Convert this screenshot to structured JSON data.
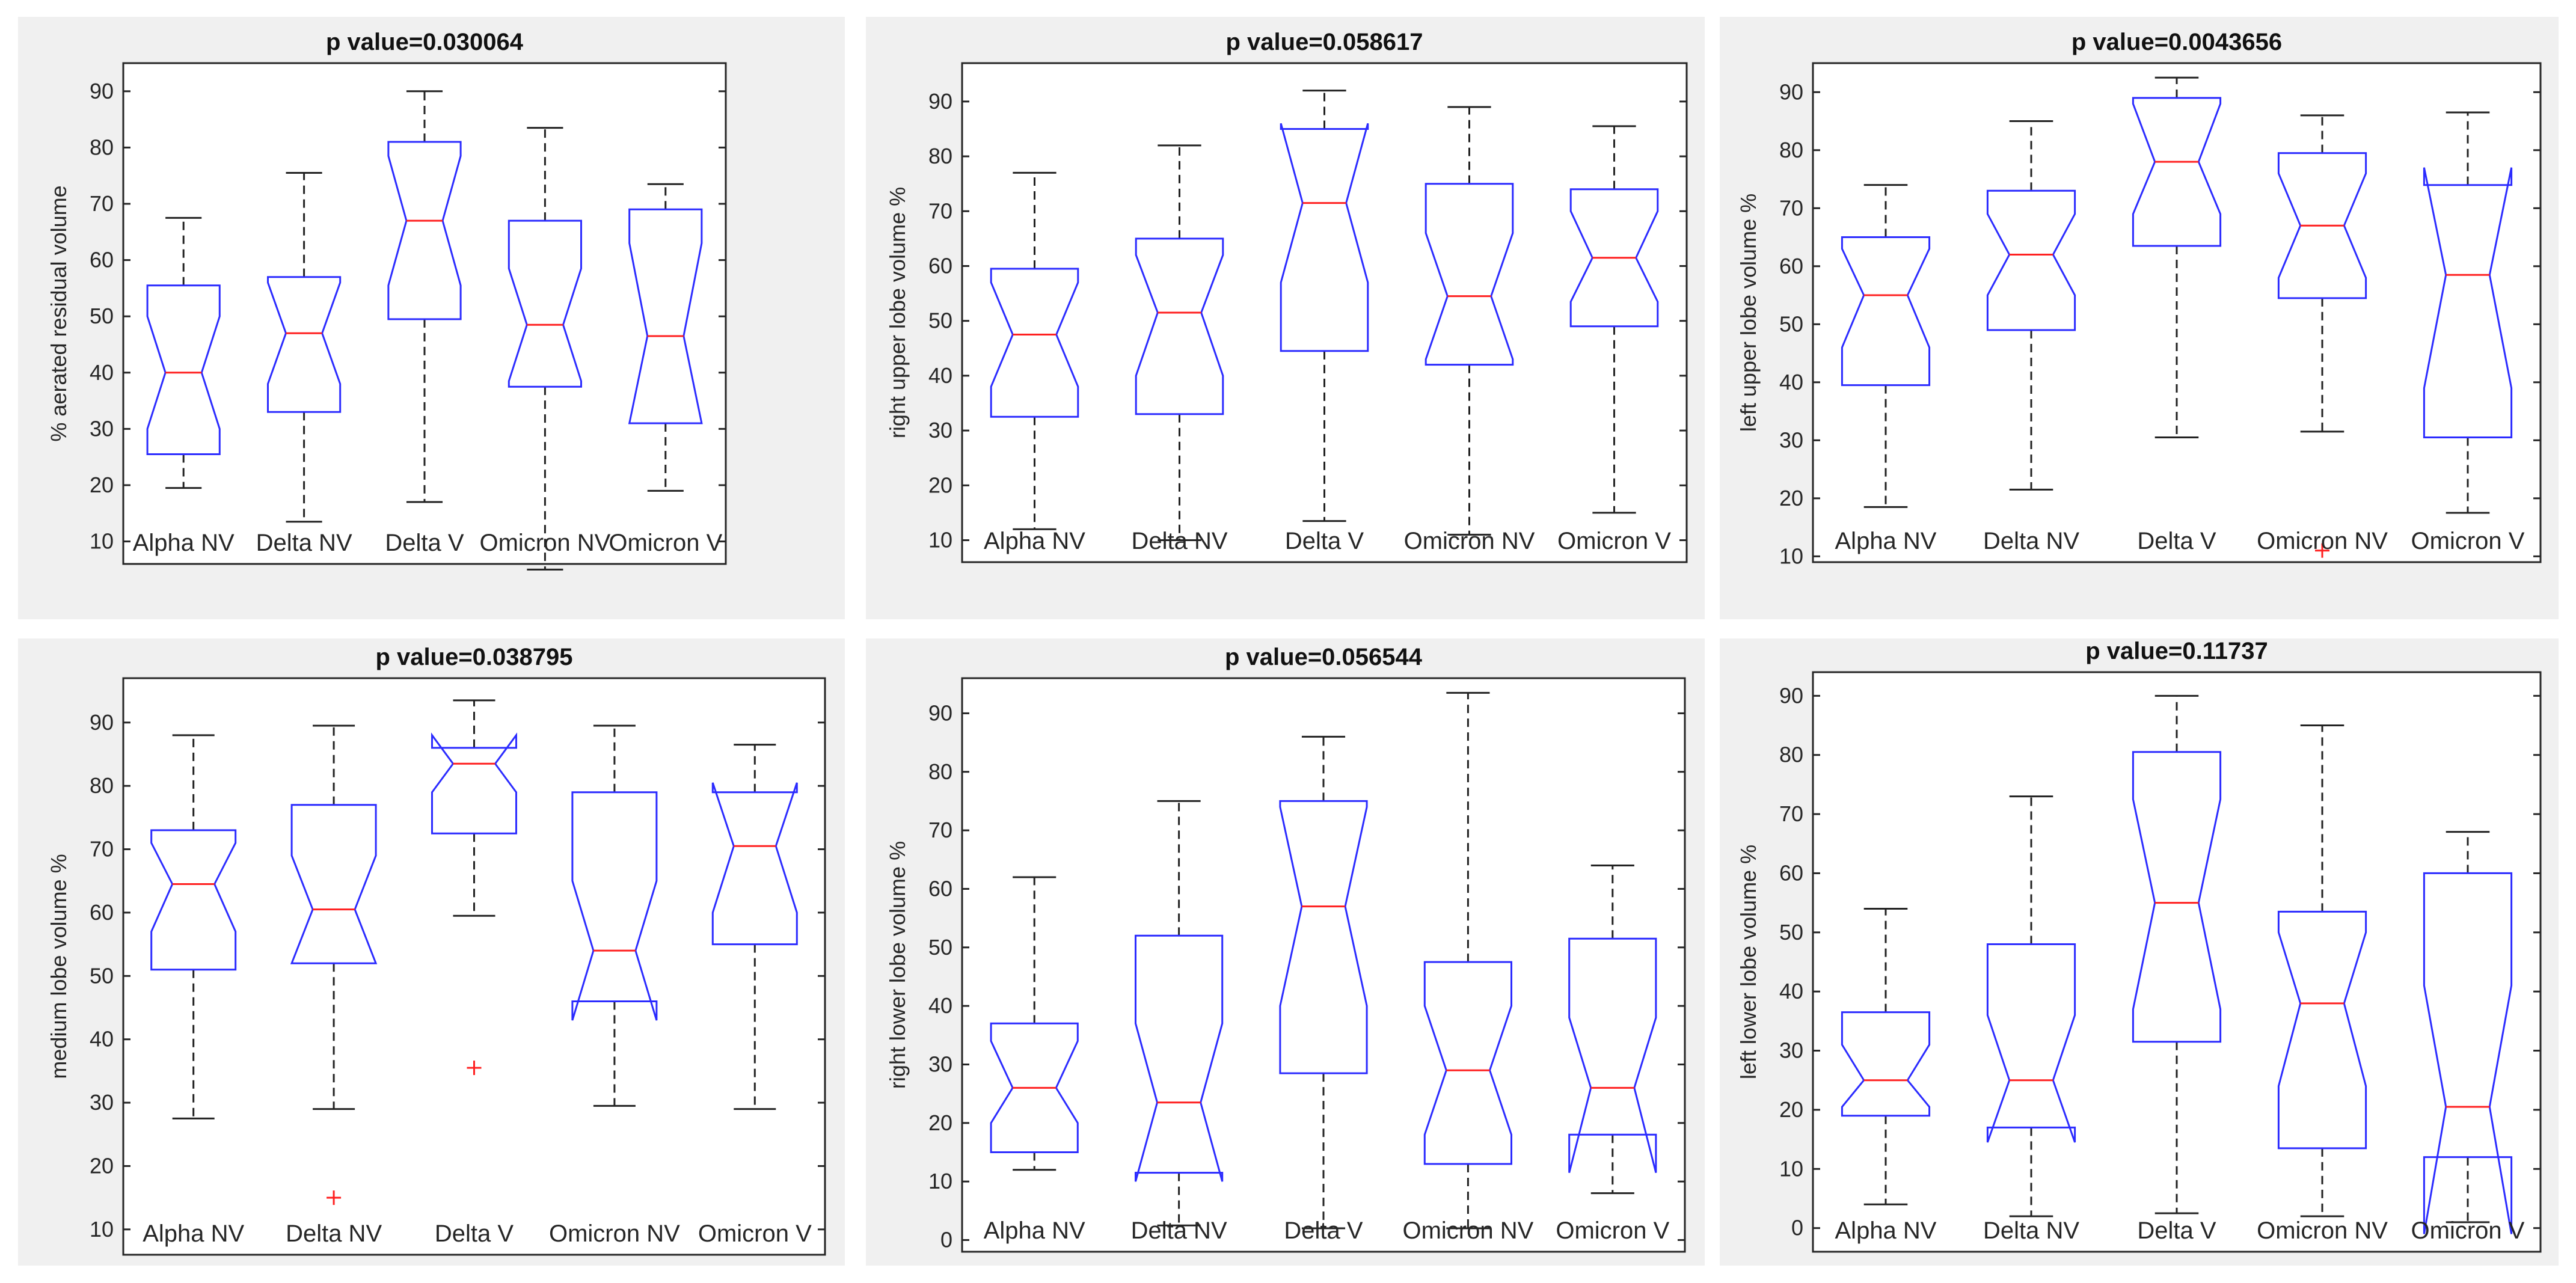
{
  "figure_layout": "2 rows x 3 columns of notched box plots",
  "chart_data": [
    {
      "type": "boxplot",
      "title": "p value=0.030064",
      "xlabel": "",
      "ylabel": "% aerated residual volume",
      "ylim": [
        6,
        95
      ],
      "yticks": [
        10,
        20,
        30,
        40,
        50,
        60,
        70,
        80,
        90
      ],
      "categories": [
        "Alpha NV",
        "Delta NV",
        "Delta V",
        "Omicron NV",
        "Omicron V"
      ],
      "boxes": [
        {
          "q1": 25.5,
          "median": 40,
          "q3": 55.5,
          "notch_low": 30,
          "notch_high": 50,
          "whisker_low": 19.5,
          "whisker_high": 67.5,
          "outliers": []
        },
        {
          "q1": 33,
          "median": 47,
          "q3": 57,
          "notch_low": 38,
          "notch_high": 56,
          "whisker_low": 13.5,
          "whisker_high": 75.5,
          "outliers": []
        },
        {
          "q1": 49.5,
          "median": 67,
          "q3": 81,
          "notch_low": 55.5,
          "notch_high": 78.5,
          "whisker_low": 17,
          "whisker_high": 90,
          "outliers": []
        },
        {
          "q1": 37.5,
          "median": 48.5,
          "q3": 67,
          "notch_low": 38.5,
          "notch_high": 58.5,
          "whisker_low": 5,
          "whisker_high": 83.5,
          "outliers": []
        },
        {
          "q1": 31,
          "median": 46.5,
          "q3": 69,
          "notch_low": 31,
          "notch_high": 63,
          "whisker_low": 19,
          "whisker_high": 73.5,
          "outliers": []
        }
      ]
    },
    {
      "type": "boxplot",
      "title": "p value=0.058617",
      "xlabel": "",
      "ylabel": "right upper lobe volume %",
      "ylim": [
        6,
        97
      ],
      "yticks": [
        10,
        20,
        30,
        40,
        50,
        60,
        70,
        80,
        90
      ],
      "categories": [
        "Alpha NV",
        "Delta NV",
        "Delta V",
        "Omicron NV",
        "Omicron V"
      ],
      "boxes": [
        {
          "q1": 32.5,
          "median": 47.5,
          "q3": 59.5,
          "notch_low": 38,
          "notch_high": 57,
          "whisker_low": 12,
          "whisker_high": 77,
          "outliers": []
        },
        {
          "q1": 33,
          "median": 51.5,
          "q3": 65,
          "notch_low": 40,
          "notch_high": 62,
          "whisker_low": 10,
          "whisker_high": 82,
          "outliers": []
        },
        {
          "q1": 44.5,
          "median": 71.5,
          "q3": 85,
          "notch_low": 57,
          "notch_high": 86,
          "whisker_low": 13.5,
          "whisker_high": 92,
          "outliers": []
        },
        {
          "q1": 42,
          "median": 54.5,
          "q3": 75,
          "notch_low": 43,
          "notch_high": 66,
          "whisker_low": 11,
          "whisker_high": 89,
          "outliers": []
        },
        {
          "q1": 49,
          "median": 61.5,
          "q3": 74,
          "notch_low": 53.5,
          "notch_high": 70,
          "whisker_low": 15,
          "whisker_high": 85.5,
          "outliers": []
        }
      ]
    },
    {
      "type": "boxplot",
      "title": "p value=0.0043656",
      "xlabel": "",
      "ylabel": "left upper lobe volume %",
      "ylim": [
        9,
        95
      ],
      "yticks": [
        10,
        20,
        30,
        40,
        50,
        60,
        70,
        80,
        90
      ],
      "categories": [
        "Alpha NV",
        "Delta NV",
        "Delta V",
        "Omicron NV",
        "Omicron V"
      ],
      "boxes": [
        {
          "q1": 39.5,
          "median": 55,
          "q3": 65,
          "notch_low": 46,
          "notch_high": 63,
          "whisker_low": 18.5,
          "whisker_high": 74,
          "outliers": []
        },
        {
          "q1": 49,
          "median": 62,
          "q3": 73,
          "notch_low": 55,
          "notch_high": 69,
          "whisker_low": 21.5,
          "whisker_high": 85,
          "outliers": []
        },
        {
          "q1": 63.5,
          "median": 78,
          "q3": 89,
          "notch_low": 69,
          "notch_high": 88,
          "whisker_low": 30.5,
          "whisker_high": 92.5,
          "outliers": []
        },
        {
          "q1": 54.5,
          "median": 67,
          "q3": 79.5,
          "notch_low": 58,
          "notch_high": 76,
          "whisker_low": 31.5,
          "whisker_high": 86,
          "outliers": [
            11
          ]
        },
        {
          "q1": 30.5,
          "median": 58.5,
          "q3": 74,
          "notch_low": 39,
          "notch_high": 77,
          "whisker_low": 17.5,
          "whisker_high": 86.5,
          "outliers": []
        }
      ]
    },
    {
      "type": "boxplot",
      "title": "p value=0.038795",
      "xlabel": "",
      "ylabel": "medium lobe volume %",
      "ylim": [
        6,
        97
      ],
      "yticks": [
        10,
        20,
        30,
        40,
        50,
        60,
        70,
        80,
        90
      ],
      "categories": [
        "Alpha NV",
        "Delta NV",
        "Delta V",
        "Omicron NV",
        "Omicron V"
      ],
      "boxes": [
        {
          "q1": 51,
          "median": 64.5,
          "q3": 73,
          "notch_low": 57,
          "notch_high": 71,
          "whisker_low": 27.5,
          "whisker_high": 88,
          "outliers": []
        },
        {
          "q1": 52,
          "median": 60.5,
          "q3": 77,
          "notch_low": 52,
          "notch_high": 69,
          "whisker_low": 29,
          "whisker_high": 89.5,
          "outliers": [
            15
          ]
        },
        {
          "q1": 72.5,
          "median": 83.5,
          "q3": 86,
          "notch_low": 79,
          "notch_high": 88,
          "whisker_low": 59.5,
          "whisker_high": 93.5,
          "outliers": [
            35.5
          ]
        },
        {
          "q1": 46,
          "median": 54,
          "q3": 79,
          "notch_low": 43,
          "notch_high": 65,
          "whisker_low": 29.5,
          "whisker_high": 89.5,
          "outliers": []
        },
        {
          "q1": 55,
          "median": 70.5,
          "q3": 79,
          "notch_low": 60,
          "notch_high": 80.5,
          "whisker_low": 29,
          "whisker_high": 86.5,
          "outliers": []
        }
      ]
    },
    {
      "type": "boxplot",
      "title": "p value=0.056544",
      "xlabel": "",
      "ylabel": "right lower lobe volume %",
      "ylim": [
        -2,
        96
      ],
      "yticks": [
        0,
        10,
        20,
        30,
        40,
        50,
        60,
        70,
        80,
        90
      ],
      "categories": [
        "Alpha NV",
        "Delta NV",
        "Delta V",
        "Omicron NV",
        "Omicron V"
      ],
      "boxes": [
        {
          "q1": 15,
          "median": 26,
          "q3": 37,
          "notch_low": 20,
          "notch_high": 34,
          "whisker_low": 12,
          "whisker_high": 62,
          "outliers": []
        },
        {
          "q1": 11.5,
          "median": 23.5,
          "q3": 52,
          "notch_low": 10,
          "notch_high": 37,
          "whisker_low": 2.5,
          "whisker_high": 75,
          "outliers": []
        },
        {
          "q1": 28.5,
          "median": 57,
          "q3": 75,
          "notch_low": 40,
          "notch_high": 74,
          "whisker_low": 2,
          "whisker_high": 86,
          "outliers": []
        },
        {
          "q1": 13,
          "median": 29,
          "q3": 47.5,
          "notch_low": 18,
          "notch_high": 40,
          "whisker_low": 2,
          "whisker_high": 93.5,
          "outliers": []
        },
        {
          "q1": 18,
          "median": 26,
          "q3": 51.5,
          "notch_low": 11.5,
          "notch_high": 38,
          "whisker_low": 8,
          "whisker_high": 64,
          "outliers": []
        }
      ]
    },
    {
      "type": "boxplot",
      "title": "p value=0.11737",
      "xlabel": "",
      "ylabel": "left lower lobe volume %",
      "ylim": [
        -4,
        94
      ],
      "yticks": [
        0,
        10,
        20,
        30,
        40,
        50,
        60,
        70,
        80,
        90
      ],
      "categories": [
        "Alpha NV",
        "Delta NV",
        "Delta V",
        "Omicron NV",
        "Omicron V"
      ],
      "boxes": [
        {
          "q1": 19,
          "median": 25,
          "q3": 36.5,
          "notch_low": 20.5,
          "notch_high": 31,
          "whisker_low": 4,
          "whisker_high": 54,
          "outliers": []
        },
        {
          "q1": 17,
          "median": 25,
          "q3": 48,
          "notch_low": 14.5,
          "notch_high": 36,
          "whisker_low": 2,
          "whisker_high": 73,
          "outliers": []
        },
        {
          "q1": 31.5,
          "median": 55,
          "q3": 80.5,
          "notch_low": 37,
          "notch_high": 72.5,
          "whisker_low": 2.5,
          "whisker_high": 90,
          "outliers": []
        },
        {
          "q1": 13.5,
          "median": 38,
          "q3": 53.5,
          "notch_low": 24,
          "notch_high": 50,
          "whisker_low": 2,
          "whisker_high": 85,
          "outliers": []
        },
        {
          "q1": 12,
          "median": 20.5,
          "q3": 60,
          "notch_low": -1,
          "notch_high": 41,
          "whisker_low": 1,
          "whisker_high": 67,
          "outliers": []
        }
      ]
    }
  ]
}
